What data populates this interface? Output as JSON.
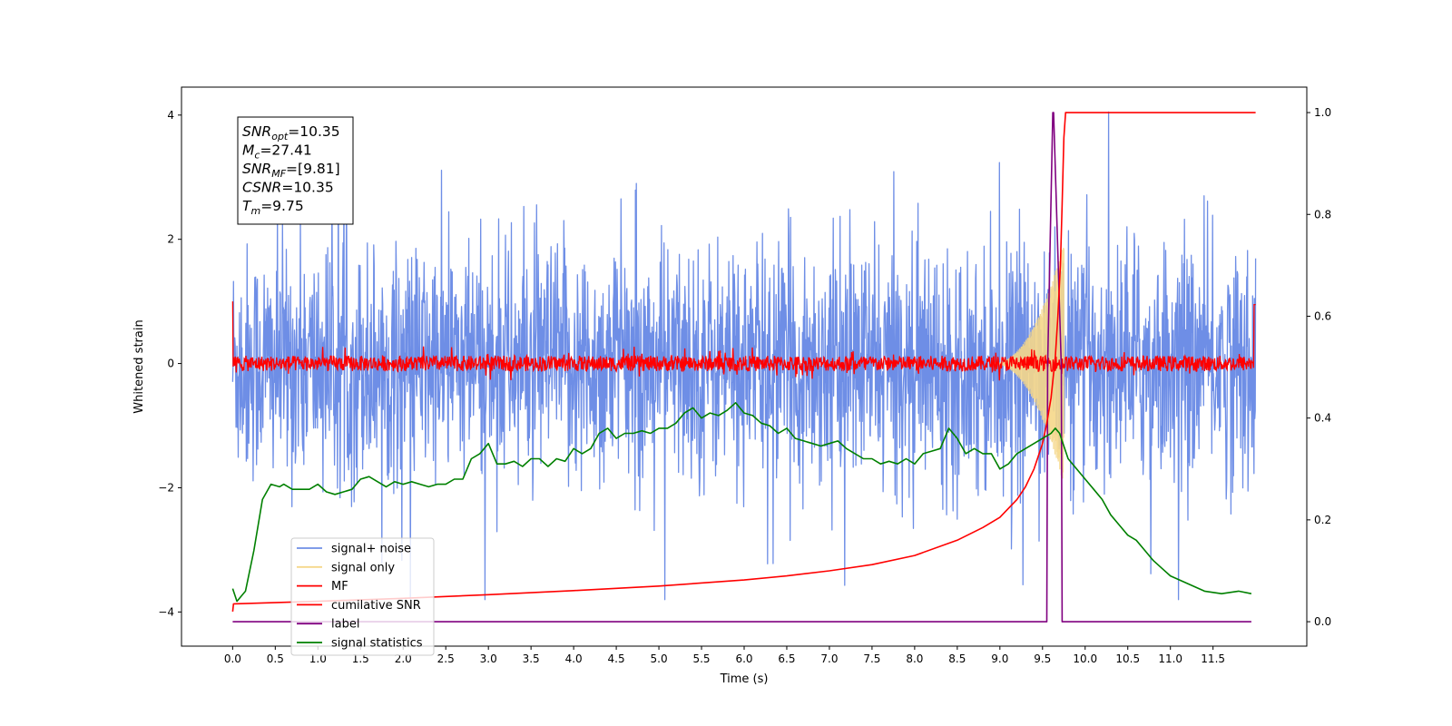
{
  "chart_data": {
    "type": "line",
    "xlabel": "Time (s)",
    "ylabel": "Whitened strain",
    "xlim": [
      -0.6,
      12.6
    ],
    "ylim": [
      -4.55,
      4.45
    ],
    "y2lim": [
      -0.048,
      1.05
    ],
    "x_ticks": [
      0.0,
      0.5,
      1.0,
      1.5,
      2.0,
      2.5,
      3.0,
      3.5,
      4.0,
      4.5,
      5.0,
      5.5,
      6.0,
      6.5,
      7.0,
      7.5,
      8.0,
      8.5,
      9.0,
      9.5,
      10.0,
      10.5,
      11.0,
      11.5
    ],
    "x_tick_labels": [
      "0.0",
      "0.5",
      "1.0",
      "1.5",
      "2.0",
      "2.5",
      "3.0",
      "3.5",
      "4.0",
      "4.5",
      "5.0",
      "5.5",
      "6.0",
      "6.5",
      "7.0",
      "7.5",
      "8.0",
      "8.5",
      "9.0",
      "9.5",
      "10.0",
      "10.5",
      "11.0",
      "11.5"
    ],
    "y_ticks": [
      4,
      2,
      0,
      -2,
      -4
    ],
    "y_tick_labels": [
      "4",
      "2",
      "0",
      "−2",
      "−4"
    ],
    "y2_ticks": [
      1.0,
      0.8,
      0.6,
      0.4,
      0.2,
      0.0
    ],
    "y2_tick_labels": [
      "1.0",
      "0.8",
      "0.6",
      "0.4",
      "0.2",
      "0.0"
    ],
    "grid": false,
    "legend_position": "lower-left",
    "annotation": {
      "lines": [
        {
          "sym": "SNR",
          "sub": "opt",
          "val": "=10.35"
        },
        {
          "sym": "M",
          "sub": "c",
          "val": "=27.41"
        },
        {
          "sym": "SNR",
          "sub": "MF",
          "val": "=[9.81]"
        },
        {
          "sym": "CSNR",
          "sub": "",
          "val": "=10.35"
        },
        {
          "sym": "T",
          "sub": "m",
          "val": "=9.75"
        }
      ]
    },
    "series": [
      {
        "name": "signal+ noise",
        "color": "#6e8ee6",
        "axis": "left",
        "kind": "noise",
        "x_range": [
          0.0,
          12.0
        ],
        "amplitude_approx": 4.05,
        "rms_approx": 0.95
      },
      {
        "name": "signal only",
        "color": "#f5d78a",
        "axis": "left",
        "kind": "chirp",
        "x_range": [
          8.9,
          9.75
        ],
        "peak_amplitude": 1.95
      },
      {
        "name": "MF",
        "color": "#ff0000",
        "axis": "left",
        "kind": "noise",
        "x_range": [
          0.0,
          12.0
        ],
        "amplitude_approx": 0.3,
        "start_value": 1.0,
        "end_value": 0.95
      },
      {
        "name": "cumilative SNR",
        "color": "#ff0000",
        "axis": "right",
        "x": [
          0.0,
          0.01,
          1.0,
          2.0,
          3.0,
          4.0,
          5.0,
          6.0,
          6.5,
          7.0,
          7.5,
          8.0,
          8.5,
          8.8,
          9.0,
          9.2,
          9.3,
          9.4,
          9.5,
          9.55,
          9.6,
          9.65,
          9.68,
          9.71,
          9.73,
          9.75,
          9.77,
          12.0
        ],
        "y": [
          0.02,
          0.035,
          0.04,
          0.046,
          0.053,
          0.061,
          0.07,
          0.082,
          0.09,
          0.1,
          0.112,
          0.13,
          0.16,
          0.185,
          0.205,
          0.24,
          0.265,
          0.3,
          0.35,
          0.39,
          0.44,
          0.52,
          0.6,
          0.7,
          0.82,
          0.95,
          1.0,
          1.0
        ]
      },
      {
        "name": "label",
        "color": "#800080",
        "axis": "right",
        "x": [
          0.0,
          9.55,
          9.56,
          9.62,
          9.63,
          9.72,
          9.73,
          11.95
        ],
        "y": [
          0.0,
          0.0,
          0.5,
          1.0,
          1.0,
          0.5,
          0.0,
          0.0
        ]
      },
      {
        "name": "signal statistics",
        "color": "#008000",
        "axis": "right",
        "x": [
          0.0,
          0.05,
          0.15,
          0.25,
          0.35,
          0.45,
          0.55,
          0.6,
          0.7,
          0.8,
          0.9,
          1.0,
          1.1,
          1.2,
          1.3,
          1.4,
          1.5,
          1.6,
          1.7,
          1.8,
          1.9,
          2.0,
          2.1,
          2.2,
          2.3,
          2.4,
          2.5,
          2.6,
          2.7,
          2.8,
          2.9,
          3.0,
          3.1,
          3.2,
          3.3,
          3.4,
          3.5,
          3.6,
          3.7,
          3.8,
          3.9,
          4.0,
          4.1,
          4.2,
          4.3,
          4.4,
          4.5,
          4.6,
          4.7,
          4.8,
          4.9,
          5.0,
          5.1,
          5.2,
          5.3,
          5.4,
          5.5,
          5.6,
          5.7,
          5.8,
          5.9,
          6.0,
          6.1,
          6.2,
          6.3,
          6.4,
          6.5,
          6.6,
          6.7,
          6.8,
          6.9,
          7.0,
          7.1,
          7.2,
          7.3,
          7.4,
          7.5,
          7.6,
          7.7,
          7.8,
          7.9,
          8.0,
          8.1,
          8.2,
          8.3,
          8.4,
          8.5,
          8.6,
          8.7,
          8.8,
          8.9,
          9.0,
          9.1,
          9.2,
          9.3,
          9.4,
          9.5,
          9.6,
          9.65,
          9.7,
          9.8,
          9.9,
          10.0,
          10.1,
          10.2,
          10.3,
          10.4,
          10.5,
          10.6,
          10.7,
          10.8,
          10.9,
          11.0,
          11.2,
          11.4,
          11.6,
          11.8,
          11.95
        ],
        "y": [
          0.065,
          0.04,
          0.06,
          0.14,
          0.24,
          0.27,
          0.265,
          0.27,
          0.26,
          0.26,
          0.26,
          0.27,
          0.255,
          0.25,
          0.255,
          0.26,
          0.28,
          0.285,
          0.275,
          0.265,
          0.275,
          0.27,
          0.275,
          0.27,
          0.265,
          0.27,
          0.27,
          0.28,
          0.28,
          0.32,
          0.33,
          0.35,
          0.31,
          0.31,
          0.315,
          0.305,
          0.32,
          0.32,
          0.305,
          0.32,
          0.315,
          0.34,
          0.33,
          0.34,
          0.37,
          0.38,
          0.36,
          0.37,
          0.37,
          0.375,
          0.37,
          0.38,
          0.38,
          0.39,
          0.41,
          0.42,
          0.4,
          0.41,
          0.405,
          0.415,
          0.43,
          0.41,
          0.405,
          0.39,
          0.385,
          0.37,
          0.38,
          0.36,
          0.355,
          0.35,
          0.345,
          0.35,
          0.355,
          0.34,
          0.33,
          0.32,
          0.32,
          0.31,
          0.315,
          0.31,
          0.32,
          0.31,
          0.33,
          0.335,
          0.34,
          0.38,
          0.36,
          0.33,
          0.34,
          0.33,
          0.33,
          0.3,
          0.31,
          0.33,
          0.34,
          0.35,
          0.36,
          0.37,
          0.38,
          0.37,
          0.32,
          0.3,
          0.28,
          0.26,
          0.24,
          0.21,
          0.19,
          0.17,
          0.16,
          0.14,
          0.12,
          0.105,
          0.09,
          0.075,
          0.06,
          0.055,
          0.06,
          0.055
        ]
      }
    ]
  }
}
